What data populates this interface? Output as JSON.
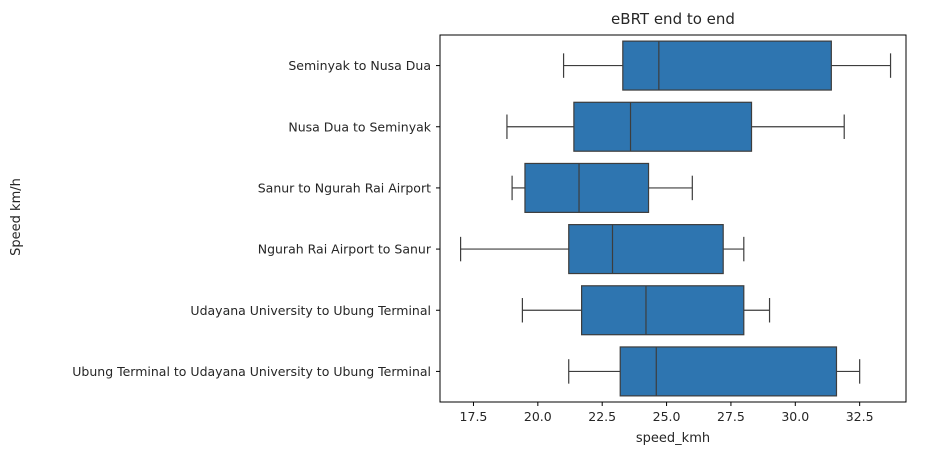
{
  "chart_data": {
    "type": "box",
    "orientation": "horizontal",
    "title": "eBRT end to end",
    "xlabel": "speed_kmh",
    "ylabel": "Speed km/h",
    "xlim": [
      16.2,
      34.3
    ],
    "xticks": [
      "17.5",
      "20.0",
      "22.5",
      "25.0",
      "27.5",
      "30.0",
      "32.5"
    ],
    "grid": false,
    "box_color": "#2e75b0",
    "categories": [
      "Seminyak to Nusa Dua",
      "Nusa Dua to Seminyak",
      "Sanur to Ngurah Rai Airport",
      "Ngurah Rai Airport to Sanur",
      "Udayana University to Ubung Terminal",
      "Ubung Terminal to Udayana University to Ubung Terminal"
    ],
    "boxes": [
      {
        "whislo": 21.0,
        "q1": 23.3,
        "med": 24.7,
        "q3": 31.4,
        "whishi": 33.7
      },
      {
        "whislo": 18.8,
        "q1": 21.4,
        "med": 23.6,
        "q3": 28.3,
        "whishi": 31.9
      },
      {
        "whislo": 19.0,
        "q1": 19.5,
        "med": 21.6,
        "q3": 24.3,
        "whishi": 26.0
      },
      {
        "whislo": 17.0,
        "q1": 21.2,
        "med": 22.9,
        "q3": 27.2,
        "whishi": 28.0
      },
      {
        "whislo": 19.4,
        "q1": 21.7,
        "med": 24.2,
        "q3": 28.0,
        "whishi": 29.0
      },
      {
        "whislo": 21.2,
        "q1": 23.2,
        "med": 24.6,
        "q3": 31.6,
        "whishi": 32.5
      }
    ]
  }
}
